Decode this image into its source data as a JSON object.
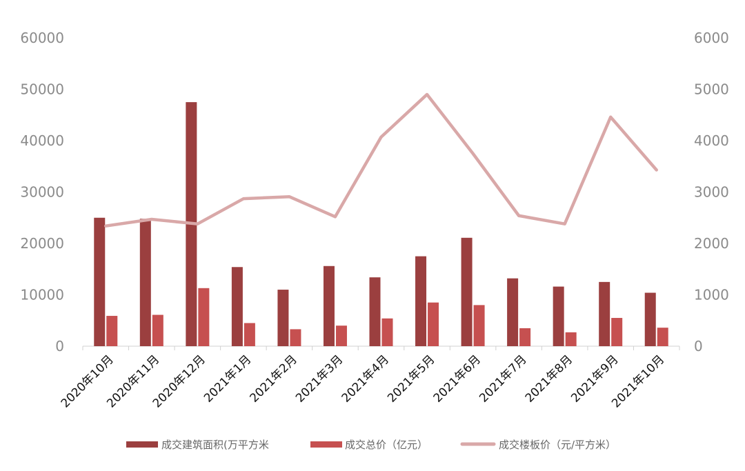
{
  "chart_data": {
    "type": "bar",
    "categories": [
      "2020年10月",
      "2020年11月",
      "2020年12月",
      "2021年1月",
      "2021年2月",
      "2021年3月",
      "2021年4月",
      "2021年5月",
      "2021年6月",
      "2021年7月",
      "2021年8月",
      "2021年9月",
      "2021年10月"
    ],
    "series": [
      {
        "name": "成交建筑面积(万平方米",
        "type": "bar",
        "axis": "left",
        "color": "#9b3f3f",
        "values": [
          25000,
          24800,
          47500,
          15400,
          11000,
          15600,
          13400,
          17500,
          21100,
          13200,
          11600,
          12500,
          10400
        ]
      },
      {
        "name": "成交总价（亿元）",
        "type": "bar",
        "axis": "left",
        "color": "#c65050",
        "values": [
          5900,
          6100,
          11300,
          4500,
          3300,
          4000,
          5400,
          8500,
          8000,
          3500,
          2700,
          5500,
          3600
        ]
      },
      {
        "name": "成交楼板价（元/平方米）",
        "type": "line",
        "axis": "right",
        "color": "#d9a8a8",
        "values": [
          2340,
          2470,
          2380,
          2870,
          2910,
          2520,
          4070,
          4900,
          3750,
          2540,
          2380,
          4460,
          3430
        ]
      }
    ],
    "y_left": {
      "min": 0,
      "max": 60000,
      "ticks": [
        0,
        10000,
        20000,
        30000,
        40000,
        50000,
        60000
      ]
    },
    "y_right": {
      "min": 0,
      "max": 6000,
      "ticks": [
        0,
        1000,
        2000,
        3000,
        4000,
        5000,
        6000
      ]
    },
    "legend_position": "bottom",
    "grid": false
  }
}
